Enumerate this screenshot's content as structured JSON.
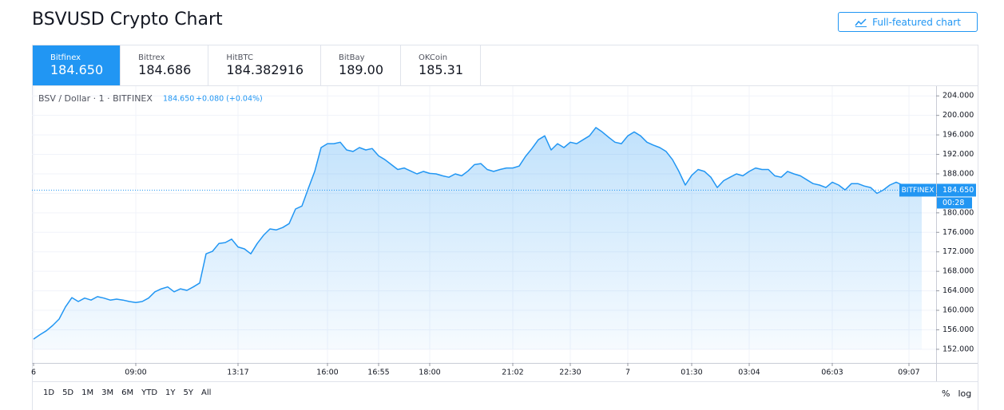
{
  "header": {
    "title": "BSVUSD Crypto Chart",
    "button": "Full-featured chart"
  },
  "tabs": [
    {
      "exchange": "Bitfinex",
      "price": "184.650"
    },
    {
      "exchange": "Bittrex",
      "price": "184.686"
    },
    {
      "exchange": "HitBTC",
      "price": "184.382916"
    },
    {
      "exchange": "BitBay",
      "price": "189.00"
    },
    {
      "exchange": "OKCoin",
      "price": "185.31"
    }
  ],
  "chart_data": {
    "type": "line",
    "legend": {
      "symbol": "BSV / Dollar · 1 · BITFINEX",
      "price": "184.650",
      "change": "+0.080 (+0.04%)"
    },
    "categories": [
      "6",
      null,
      null,
      null,
      null,
      null,
      null,
      null,
      null,
      null,
      null,
      null,
      null,
      null,
      null,
      null,
      "09:00",
      null,
      null,
      null,
      null,
      null,
      null,
      null,
      null,
      null,
      null,
      null,
      null,
      null,
      null,
      null,
      "13:17",
      null,
      null,
      null,
      null,
      null,
      null,
      null,
      null,
      null,
      null,
      null,
      null,
      null,
      "16:00",
      null,
      null,
      null,
      null,
      null,
      null,
      null,
      "16:55",
      null,
      null,
      null,
      null,
      null,
      null,
      null,
      "18:00",
      null,
      null,
      null,
      null,
      null,
      null,
      null,
      null,
      null,
      null,
      null,
      null,
      "21:02",
      null,
      null,
      null,
      null,
      null,
      null,
      null,
      null,
      "22:30",
      null,
      null,
      null,
      null,
      null,
      null,
      null,
      null,
      "7",
      null,
      null,
      null,
      null,
      null,
      null,
      null,
      null,
      null,
      "01:30",
      null,
      null,
      null,
      null,
      null,
      null,
      null,
      null,
      "03:04",
      null,
      null,
      null,
      null,
      null,
      null,
      null,
      null,
      null,
      null,
      null,
      null,
      "06:03",
      null,
      null,
      null,
      null,
      null,
      null,
      null,
      null,
      null,
      null,
      null,
      "09:07",
      null,
      null
    ],
    "series": [
      {
        "name": "BITFINEX",
        "color": "#2196f3",
        "values": [
          154.1,
          155,
          155.8,
          156.9,
          158.2,
          160.7,
          162.6,
          161.8,
          162.5,
          162.1,
          162.8,
          162.5,
          162.1,
          162.3,
          162.1,
          161.8,
          161.6,
          161.8,
          162.5,
          163.8,
          164.4,
          164.8,
          163.8,
          164.4,
          164.1,
          164.8,
          165.6,
          171.6,
          172.1,
          173.7,
          173.9,
          174.6,
          173,
          172.6,
          171.6,
          173.7,
          175.4,
          176.7,
          176.5,
          177,
          177.8,
          180.8,
          181.4,
          185,
          188.5,
          193.4,
          194.2,
          194.2,
          194.5,
          192.9,
          192.6,
          193.4,
          192.9,
          193.2,
          191.7,
          190.9,
          189.9,
          188.9,
          189.2,
          188.6,
          188,
          188.5,
          188.1,
          188,
          187.6,
          187.3,
          188,
          187.6,
          188.6,
          189.9,
          190.1,
          188.9,
          188.5,
          188.9,
          189.2,
          189.2,
          189.6,
          191.6,
          193.2,
          195,
          195.8,
          192.9,
          194.2,
          193.4,
          194.5,
          194.2,
          195,
          195.8,
          197.5,
          196.6,
          195.5,
          194.5,
          194.2,
          195.8,
          196.6,
          195.8,
          194.5,
          193.9,
          193.4,
          192.6,
          190.9,
          188.5,
          185.7,
          187.7,
          188.9,
          188.5,
          187.3,
          185.2,
          186.6,
          187.3,
          188,
          187.6,
          188.5,
          189.2,
          188.9,
          188.9,
          187.6,
          187.3,
          188.5,
          188,
          187.6,
          186.8,
          186,
          185.7,
          185.2,
          186.3,
          185.7,
          184.7,
          186,
          186,
          185.5,
          185.2,
          184,
          184.7,
          185.7,
          186.3,
          185.7,
          185.2,
          184.8,
          184.65
        ]
      }
    ],
    "ylim": [
      149.2,
      206
    ],
    "yticks": [
      {
        "value": 152,
        "label": "152.000"
      },
      {
        "value": 156,
        "label": "156.000"
      },
      {
        "value": 160,
        "label": "160.000"
      },
      {
        "value": 164,
        "label": "164.000"
      },
      {
        "value": 168,
        "label": "168.000"
      },
      {
        "value": 172,
        "label": "172.000"
      },
      {
        "value": 176,
        "label": "176.000"
      },
      {
        "value": 180,
        "label": "180.000"
      },
      {
        "value": 184,
        "label": "184.000"
      },
      {
        "value": 188,
        "label": "188.000"
      },
      {
        "value": 192,
        "label": "192.000"
      },
      {
        "value": 196,
        "label": "196.000"
      },
      {
        "value": 200,
        "label": "200.000"
      },
      {
        "value": 204,
        "label": "204.000"
      }
    ],
    "grid": true,
    "last_price": {
      "value": 184.65,
      "label": "184.650"
    },
    "countdown": "00:28"
  },
  "toolbar": {
    "ranges": [
      "1D",
      "5D",
      "1M",
      "3M",
      "6M",
      "YTD",
      "1Y",
      "5Y",
      "All"
    ],
    "options": [
      "%",
      "log"
    ]
  }
}
